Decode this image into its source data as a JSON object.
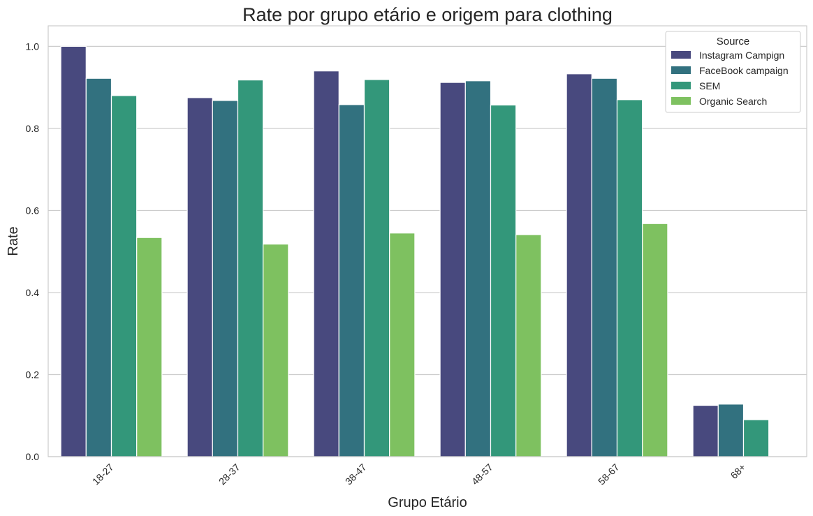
{
  "chart_data": {
    "type": "bar",
    "title": "Rate por grupo etário e origem para clothing",
    "xlabel": "Grupo Etário",
    "ylabel": "Rate",
    "categories": [
      "18-27",
      "28-37",
      "38-47",
      "48-57",
      "58-67",
      "68+"
    ],
    "ylim": [
      0,
      1.05
    ],
    "yticks": [
      "0.0",
      "0.2",
      "0.4",
      "0.6",
      "0.8",
      "1.0"
    ],
    "grid": "horizontal",
    "legend": {
      "title": "Source",
      "placement": "top-right"
    },
    "series": [
      {
        "name": "Instagram Campign",
        "color": "#48497e",
        "values": [
          1.0,
          0.875,
          0.94,
          0.912,
          0.933,
          0.125
        ]
      },
      {
        "name": "FaceBook campaign",
        "color": "#32717f",
        "values": [
          0.922,
          0.868,
          0.858,
          0.916,
          0.922,
          0.128
        ]
      },
      {
        "name": "SEM",
        "color": "#33977a",
        "values": [
          0.88,
          0.918,
          0.919,
          0.857,
          0.87,
          0.09
        ]
      },
      {
        "name": "Organic Search",
        "color": "#7ec160",
        "values": [
          0.534,
          0.518,
          0.545,
          0.541,
          0.568,
          null
        ]
      }
    ]
  }
}
